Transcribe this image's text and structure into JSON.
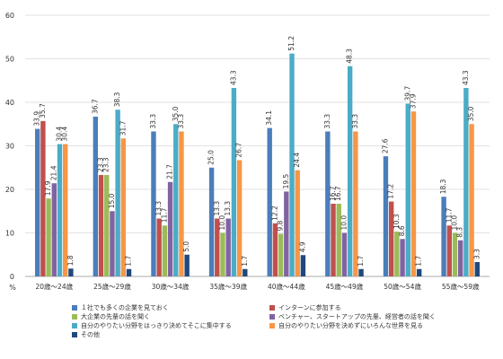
{
  "chart_data": {
    "type": "bar",
    "ylabel": "%",
    "ylim": [
      0,
      60
    ],
    "yticks": [
      0,
      10,
      20,
      30,
      40,
      50,
      60
    ],
    "grid": true,
    "legend_position": "bottom",
    "categories": [
      "20歳～24歳",
      "25歳～29歳",
      "30歳～34歳",
      "35歳～39歳",
      "40歳～44歳",
      "45歳～49歳",
      "50歳～54歳",
      "55歳～59歳"
    ],
    "series": [
      {
        "name": "１社でも多くの企業を見ておく",
        "color": "#4a7ebb",
        "values": [
          33.9,
          36.7,
          33.3,
          25.0,
          34.1,
          33.3,
          27.6,
          18.3
        ]
      },
      {
        "name": "インターンに参加する",
        "color": "#c0504d",
        "values": [
          35.7,
          23.3,
          13.3,
          13.3,
          12.2,
          16.7,
          17.2,
          11.7
        ]
      },
      {
        "name": "大企業の先輩の話を聞く",
        "color": "#9bbb59",
        "values": [
          17.9,
          23.3,
          11.7,
          10.0,
          9.8,
          16.7,
          10.3,
          10.0
        ]
      },
      {
        "name": "ベンチャー、スタートアップの先輩、経営者の話を聞く",
        "color": "#8064a2",
        "values": [
          21.4,
          15.0,
          21.7,
          13.3,
          19.5,
          10.0,
          8.6,
          8.3
        ]
      },
      {
        "name": "自分のやりたい分野をはっきり決めてそこに集中する",
        "color": "#4bacc6",
        "values": [
          30.4,
          38.3,
          35.0,
          43.3,
          51.2,
          48.3,
          39.7,
          43.3
        ]
      },
      {
        "name": "自分のやりたい分野を決めずにいろんな世界を見る",
        "color": "#f79646",
        "values": [
          30.4,
          31.7,
          33.3,
          26.7,
          24.4,
          33.3,
          37.9,
          35.0
        ]
      },
      {
        "name": "その他",
        "color": "#1f497d",
        "values": [
          1.8,
          1.7,
          5.0,
          1.7,
          4.9,
          1.7,
          1.7,
          3.3
        ]
      }
    ]
  }
}
